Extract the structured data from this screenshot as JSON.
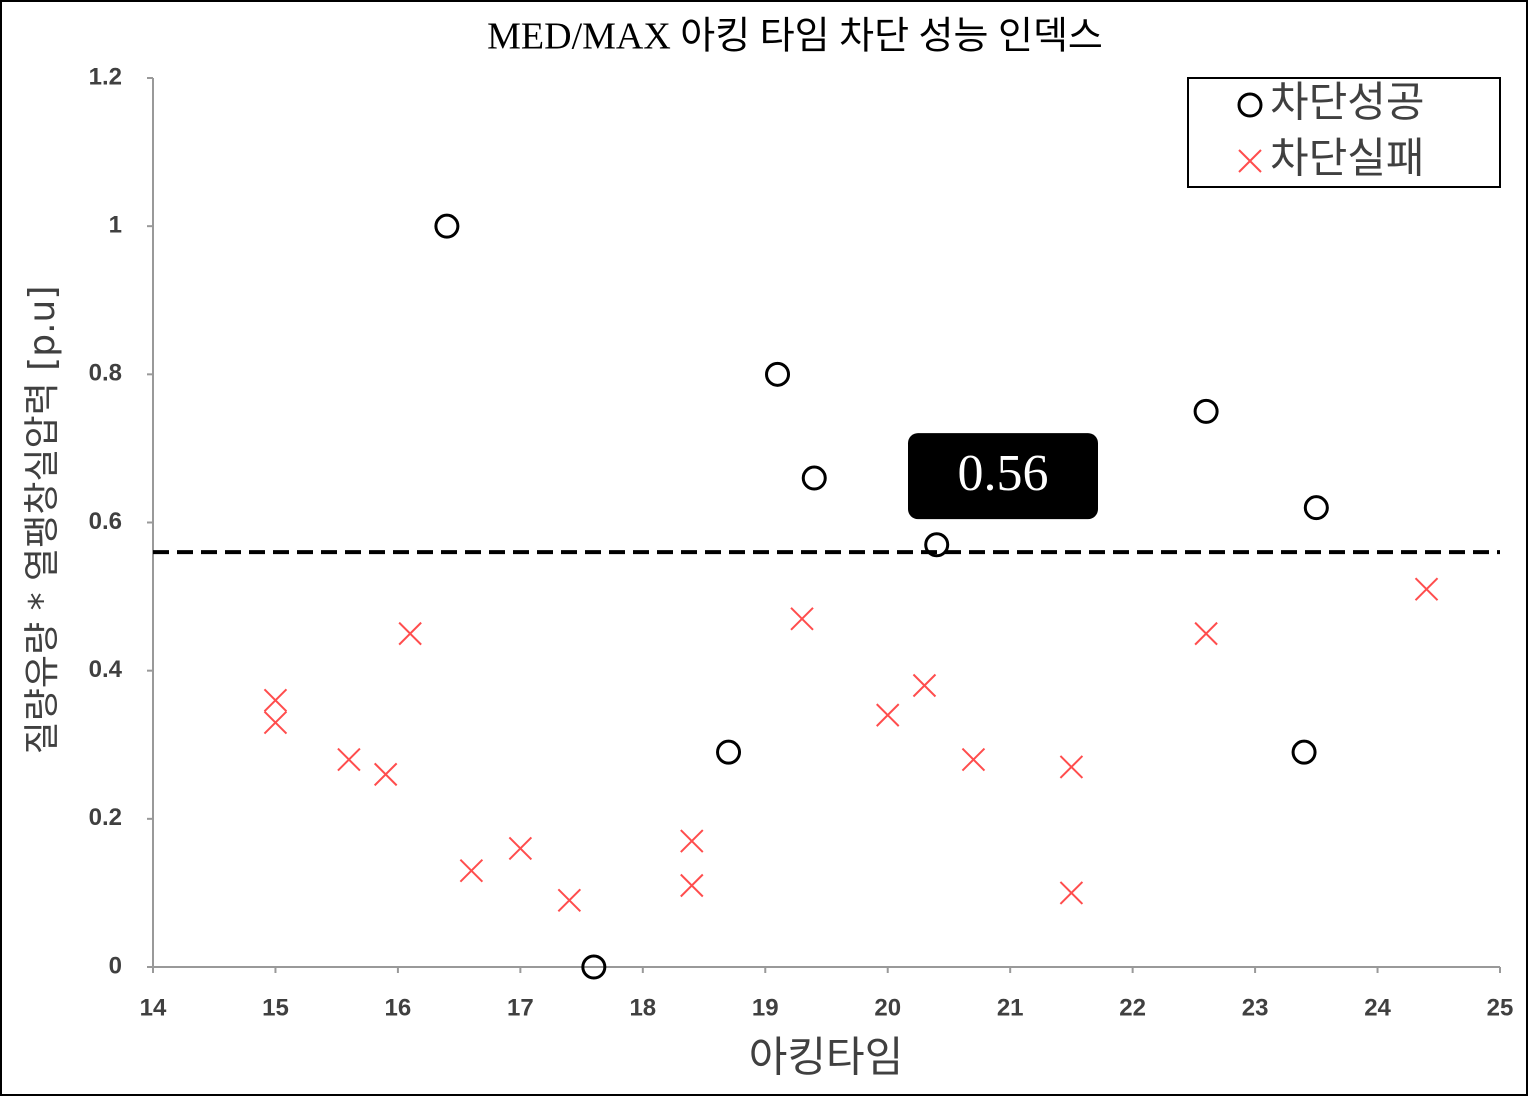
{
  "chart_data": {
    "type": "scatter",
    "title": "MED/MAX 아킹 타임 차단 성능 인덱스",
    "xlabel": "아킹타임",
    "ylabel": "질량유량 * 열팽창실압력 [p.u]",
    "xlim": [
      14,
      25
    ],
    "xticks": [
      14,
      15,
      16,
      17,
      18,
      19,
      20,
      21,
      22,
      23,
      24,
      25
    ],
    "ylim": [
      0,
      1.2
    ],
    "yticks": [
      0,
      0.2,
      0.4,
      0.6,
      0.8,
      1,
      1.2
    ],
    "legend": "upper right",
    "hline": 0.56,
    "series": [
      {
        "name": "차단성공",
        "color": "#000000",
        "marker": "circle",
        "x": [
          16.4,
          17.6,
          18.7,
          19.1,
          19.4,
          20.4,
          22.6,
          23.4,
          23.5
        ],
        "values": [
          1.0,
          0,
          0.29,
          0.8,
          0.66,
          0.57,
          0.75,
          0.29,
          0.62
        ]
      },
      {
        "name": "차단실패",
        "color": "#ff4d4d",
        "marker": "x",
        "x": [
          15.0,
          15.0,
          15.6,
          15.9,
          16.1,
          16.6,
          17.0,
          17.4,
          18.4,
          18.4,
          19.3,
          20.0,
          20.3,
          20.7,
          21.5,
          21.5,
          22.6,
          24.4
        ],
        "values": [
          0.36,
          0.33,
          0.28,
          0.26,
          0.45,
          0.13,
          0.16,
          0.09,
          0.17,
          0.11,
          0.47,
          0.34,
          0.38,
          0.28,
          0.27,
          0.1,
          0.45,
          0.51
        ]
      }
    ]
  }
}
